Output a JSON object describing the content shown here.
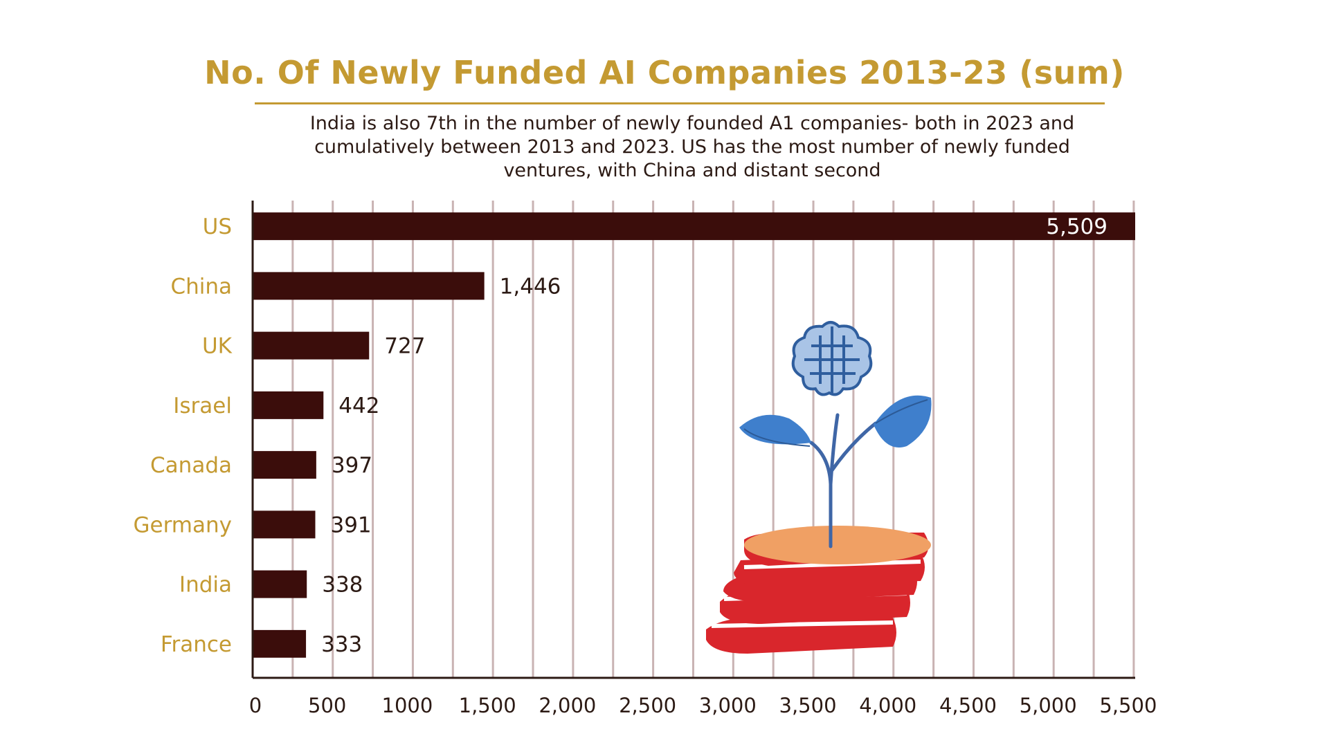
{
  "chart_data": {
    "type": "bar",
    "orientation": "horizontal",
    "title": "No. Of Newly Funded AI Companies 2013-23 (sum)",
    "subtitle": "India is also 7th in the number of newly founded A1 companies- both in 2023 and cumulatively between 2013 and 2023. US has the most number of newly funded ventures, with China and distant second",
    "categories": [
      "US",
      "China",
      "UK",
      "Israel",
      "Canada",
      "Germany",
      "India",
      "France"
    ],
    "values": [
      5509,
      1446,
      727,
      442,
      397,
      391,
      338,
      333
    ],
    "value_labels": [
      "5,509",
      "1,446",
      "727",
      "442",
      "397",
      "391",
      "338",
      "333"
    ],
    "x_ticks": [
      0,
      500,
      1000,
      1500,
      2000,
      2500,
      3000,
      3500,
      4000,
      4500,
      5000,
      5500
    ],
    "x_tick_labels": [
      "0",
      "500",
      "1000",
      "1,500",
      "2,000",
      "2,500",
      "3,000",
      "3,500",
      "4,000",
      "4,500",
      "5,000",
      "5,500"
    ],
    "xlim": [
      0,
      5509
    ],
    "grid": "vertical",
    "legend": "none",
    "colors": {
      "bar": "#3b0d0b",
      "title": "#c49a32",
      "category_label": "#c49a32",
      "grid": "#c9b3b3",
      "text": "#2c1a14"
    },
    "illustration": "plant-growing-from-coin-stack-with-brain-icon"
  }
}
